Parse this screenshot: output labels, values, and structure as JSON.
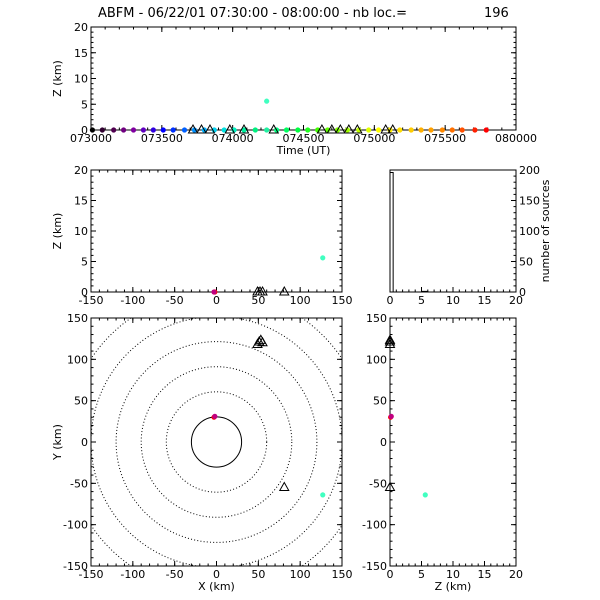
{
  "header": {
    "title": "ABFM - 06/22/01 07:30:00 - 08:00:00 - nb loc.=",
    "count": "196"
  },
  "chart_data": [
    {
      "id": "time-height",
      "type": "scatter",
      "xlabel": "Time (UT)",
      "ylabel": "Z (km)",
      "xlim": [
        0,
        30
      ],
      "ylim": [
        0,
        20
      ],
      "xticks": [
        0,
        5,
        10,
        15,
        20,
        25,
        30
      ],
      "xtick_labels": [
        "073000",
        "073500",
        "074000",
        "074500",
        "075000",
        "075500",
        "080000"
      ],
      "yticks": [
        0,
        5,
        10,
        15,
        20
      ],
      "points": [
        {
          "x": 0.1,
          "y": 0.0,
          "color": "#000000"
        },
        {
          "x": 0.8,
          "y": 0.0,
          "color": "#300030"
        },
        {
          "x": 1.6,
          "y": 0.0,
          "color": "#500050"
        },
        {
          "x": 2.3,
          "y": 0.0,
          "color": "#700080"
        },
        {
          "x": 3.0,
          "y": 0.0,
          "color": "#8000a0"
        },
        {
          "x": 3.7,
          "y": 0.0,
          "color": "#6000c0"
        },
        {
          "x": 4.4,
          "y": 0.0,
          "color": "#3000e0"
        },
        {
          "x": 5.1,
          "y": 0.0,
          "color": "#0000ff"
        },
        {
          "x": 5.8,
          "y": 0.0,
          "color": "#0030ff"
        },
        {
          "x": 6.6,
          "y": 0.0,
          "color": "#0060ff"
        },
        {
          "x": 7.3,
          "y": 0.0,
          "color": "#0090ff"
        },
        {
          "x": 8.0,
          "y": 0.0,
          "color": "#00b0ff"
        },
        {
          "x": 8.7,
          "y": 0.0,
          "color": "#00d0f0"
        },
        {
          "x": 9.4,
          "y": 0.0,
          "color": "#00e0e0"
        },
        {
          "x": 10.1,
          "y": 0.0,
          "color": "#00f0c0"
        },
        {
          "x": 10.8,
          "y": 0.0,
          "color": "#00f0a0"
        },
        {
          "x": 11.6,
          "y": 0.0,
          "color": "#00f080"
        },
        {
          "x": 12.4,
          "y": 5.6,
          "color": "#40ffc0"
        },
        {
          "x": 12.4,
          "y": 0.0,
          "color": "#20f0a0"
        },
        {
          "x": 13.1,
          "y": 0.0,
          "color": "#00ff80"
        },
        {
          "x": 13.8,
          "y": 0.0,
          "color": "#00ff60"
        },
        {
          "x": 14.6,
          "y": 0.0,
          "color": "#00ff40"
        },
        {
          "x": 15.3,
          "y": 0.0,
          "color": "#20ff20"
        },
        {
          "x": 16.0,
          "y": 0.0,
          "color": "#40ff00"
        },
        {
          "x": 16.7,
          "y": 0.0,
          "color": "#60ff00"
        },
        {
          "x": 17.4,
          "y": 0.0,
          "color": "#80ff00"
        },
        {
          "x": 18.1,
          "y": 0.0,
          "color": "#a0ff00"
        },
        {
          "x": 18.9,
          "y": 0.0,
          "color": "#c0ff00"
        },
        {
          "x": 19.6,
          "y": 0.0,
          "color": "#e0ff00"
        },
        {
          "x": 20.3,
          "y": 0.0,
          "color": "#ffff00"
        },
        {
          "x": 21.1,
          "y": 0.0,
          "color": "#ffee00"
        },
        {
          "x": 21.8,
          "y": 0.0,
          "color": "#ffdd00"
        },
        {
          "x": 22.6,
          "y": 0.0,
          "color": "#ffcc00"
        },
        {
          "x": 23.3,
          "y": 0.0,
          "color": "#ffb000"
        },
        {
          "x": 24.0,
          "y": 0.0,
          "color": "#ffa000"
        },
        {
          "x": 24.8,
          "y": 0.0,
          "color": "#ff8800"
        },
        {
          "x": 25.5,
          "y": 0.0,
          "color": "#ff7000"
        },
        {
          "x": 26.2,
          "y": 0.0,
          "color": "#ff5000"
        },
        {
          "x": 27.1,
          "y": 0.0,
          "color": "#ff2000"
        },
        {
          "x": 27.9,
          "y": 0.0,
          "color": "#ff0000"
        }
      ],
      "stations": [
        {
          "x": 7.2,
          "y": 0.0
        },
        {
          "x": 7.8,
          "y": 0.0
        },
        {
          "x": 8.4,
          "y": 0.0
        },
        {
          "x": 9.8,
          "y": 0.0
        },
        {
          "x": 10.8,
          "y": 0.0
        },
        {
          "x": 12.9,
          "y": 0.0
        },
        {
          "x": 16.3,
          "y": 0.0
        },
        {
          "x": 17.0,
          "y": 0.0
        },
        {
          "x": 17.6,
          "y": 0.0
        },
        {
          "x": 18.2,
          "y": 0.0
        },
        {
          "x": 18.8,
          "y": 0.0
        },
        {
          "x": 20.8,
          "y": 0.0
        },
        {
          "x": 21.3,
          "y": 0.0
        }
      ]
    },
    {
      "id": "x-z",
      "type": "scatter",
      "ylabel": "Z (km)",
      "xlim": [
        -150,
        150
      ],
      "ylim": [
        0,
        20
      ],
      "xticks": [
        -150,
        -100,
        -50,
        0,
        50,
        100,
        150
      ],
      "yticks": [
        0,
        5,
        10,
        15,
        20
      ],
      "points": [
        {
          "x": -2,
          "y": 0.0,
          "color": "#ff0000"
        },
        {
          "x": -3,
          "y": 0.0,
          "color": "#c00080"
        },
        {
          "x": 127,
          "y": 5.6,
          "color": "#40ffc0"
        }
      ],
      "stations": [
        {
          "x": 49,
          "y": 0.0
        },
        {
          "x": 52,
          "y": 0.0
        },
        {
          "x": 55,
          "y": 0.0
        },
        {
          "x": 81,
          "y": 0.0
        }
      ]
    },
    {
      "id": "height-histogram",
      "type": "bar",
      "ylabel": "number of sources",
      "xlim": [
        0,
        20
      ],
      "ylim": [
        0,
        200
      ],
      "xticks": [
        0,
        5,
        10,
        15,
        20
      ],
      "yticks": [
        0,
        50,
        100,
        150,
        200
      ],
      "bins": [
        {
          "from": 0,
          "to": 0.5,
          "value": 196
        },
        {
          "from": 5,
          "to": 6,
          "value": 1
        }
      ]
    },
    {
      "id": "x-y",
      "type": "scatter",
      "xlabel": "X (km)",
      "ylabel": "Y (km)",
      "xlim": [
        -150,
        150
      ],
      "ylim": [
        -150,
        150
      ],
      "xticks": [
        -150,
        -100,
        -50,
        0,
        50,
        100,
        150
      ],
      "yticks": [
        -150,
        -100,
        -50,
        0,
        50,
        100,
        150
      ],
      "range_rings": [
        30,
        60,
        90,
        120,
        150,
        180
      ],
      "points": [
        {
          "x": -3,
          "y": 30,
          "color": "#ff0000"
        },
        {
          "x": -2,
          "y": 31,
          "color": "#c00080"
        },
        {
          "x": 127,
          "y": -64,
          "color": "#40ffc0"
        }
      ],
      "stations": [
        {
          "x": 49,
          "y": 118
        },
        {
          "x": 51,
          "y": 121
        },
        {
          "x": 53,
          "y": 123
        },
        {
          "x": 55,
          "y": 120
        },
        {
          "x": 81,
          "y": -55
        }
      ]
    },
    {
      "id": "z-y",
      "type": "scatter",
      "xlabel": "Z (km)",
      "xlim": [
        0,
        20
      ],
      "ylim": [
        -150,
        150
      ],
      "xticks": [
        0,
        5,
        10,
        15,
        20
      ],
      "yticks": [
        -150,
        -100,
        -50,
        0,
        50,
        100,
        150
      ],
      "points": [
        {
          "x": 0.1,
          "y": 30,
          "color": "#ff0000"
        },
        {
          "x": 0.2,
          "y": 31,
          "color": "#c00080"
        },
        {
          "x": 5.6,
          "y": -64,
          "color": "#40ffc0"
        }
      ],
      "stations": [
        {
          "x": 0.0,
          "y": 118
        },
        {
          "x": 0.0,
          "y": 121
        },
        {
          "x": 0.0,
          "y": 123
        },
        {
          "x": 0.0,
          "y": -55
        }
      ]
    }
  ]
}
